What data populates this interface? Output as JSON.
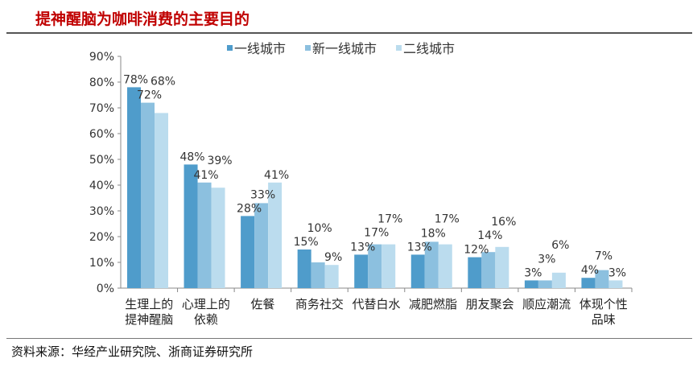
{
  "header": {
    "title": "提神醒脑为咖啡消费的主要目的"
  },
  "footer": {
    "source": "资料来源：华经产业研究院、浙商证券研究所"
  },
  "chart_data": {
    "type": "bar",
    "title": "",
    "categories": [
      [
        "生理上的",
        "提神醒脑"
      ],
      [
        "心理上的",
        "依赖"
      ],
      [
        "佐餐"
      ],
      [
        "商务社交"
      ],
      [
        "代替白水"
      ],
      [
        "减肥燃脂"
      ],
      [
        "朋友聚会"
      ],
      [
        "顺应潮流"
      ],
      [
        "体现个性",
        "品味"
      ]
    ],
    "series": [
      {
        "name": "一线城市",
        "color": "#4f9ccb",
        "values": [
          78,
          48,
          28,
          15,
          13,
          13,
          12,
          3,
          4
        ]
      },
      {
        "name": "新一线城市",
        "color": "#8cc0df",
        "values": [
          72,
          41,
          33,
          10,
          17,
          18,
          14,
          3,
          7
        ]
      },
      {
        "name": "二线城市",
        "color": "#bbdcee",
        "values": [
          68,
          39,
          41,
          9,
          17,
          17,
          16,
          6,
          3
        ]
      }
    ],
    "ylim": [
      0,
      90
    ],
    "yticks": [
      "0%",
      "10%",
      "20%",
      "30%",
      "40%",
      "50%",
      "60%",
      "70%",
      "80%",
      "90%"
    ],
    "legend": "top",
    "grid": false
  }
}
